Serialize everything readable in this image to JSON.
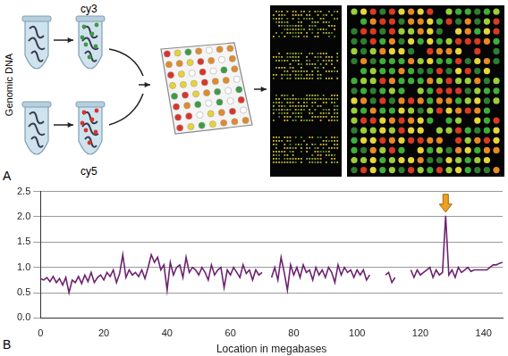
{
  "panel_a": {
    "label": "A",
    "side_label": "Genomic DNA",
    "top_dye": "cy3",
    "bottom_dye": "cy5"
  },
  "chart_data": {
    "type": "line",
    "panel_label": "B",
    "x_label": "Location in megabases",
    "x": [
      0,
      1,
      2,
      3,
      4,
      5,
      6,
      7,
      8,
      9,
      10,
      11,
      12,
      13,
      14,
      15,
      16,
      17,
      18,
      19,
      20,
      21,
      22,
      23,
      24,
      25,
      26,
      27,
      28,
      29,
      30,
      31,
      32,
      33,
      34,
      35,
      36,
      37,
      38,
      39,
      40,
      41,
      42,
      43,
      44,
      45,
      46,
      47,
      48,
      49,
      50,
      51,
      52,
      53,
      54,
      55,
      56,
      57,
      58,
      59,
      60,
      61,
      62,
      63,
      64,
      65,
      66,
      67,
      68,
      69,
      70,
      71,
      72,
      73,
      74,
      75,
      76,
      77,
      78,
      79,
      80,
      81,
      82,
      83,
      84,
      85,
      86,
      87,
      88,
      89,
      90,
      91,
      92,
      93,
      94,
      95,
      96,
      97,
      98,
      99,
      100,
      101,
      102,
      103,
      104,
      105,
      106,
      107,
      108,
      109,
      110,
      111,
      112,
      113,
      114,
      115,
      116,
      117,
      118,
      119,
      120,
      121,
      122,
      123,
      124,
      125,
      126,
      127,
      128,
      129,
      130,
      131,
      132,
      133,
      134,
      135,
      136,
      137,
      138,
      139,
      140,
      141,
      142,
      143,
      144,
      145,
      146
    ],
    "values": [
      0.78,
      0.75,
      0.8,
      0.72,
      0.82,
      0.7,
      0.78,
      0.65,
      0.8,
      0.5,
      0.75,
      0.7,
      0.82,
      0.68,
      0.85,
      0.72,
      0.9,
      0.7,
      0.8,
      0.85,
      0.75,
      0.9,
      0.82,
      0.95,
      0.7,
      0.88,
      1.25,
      0.8,
      0.95,
      0.85,
      0.9,
      0.82,
      0.95,
      0.78,
      1.0,
      1.25,
      1.1,
      1.2,
      0.95,
      1.05,
      0.55,
      1.1,
      0.85,
      1.0,
      1.05,
      0.8,
      1.2,
      0.9,
      1.0,
      0.95,
      0.85,
      1.0,
      0.9,
      0.75,
      1.05,
      0.85,
      0.95,
      1.0,
      0.6,
      0.95,
      0.85,
      1.0,
      0.9,
      0.8,
      1.05,
      0.88,
      0.95,
      0.75,
      0.95,
      0.85,
      0.9,
      null,
      null,
      0.8,
      1.0,
      0.75,
      1.2,
      0.9,
      0.55,
      1.05,
      0.85,
      1.0,
      0.8,
      1.05,
      0.9,
      0.95,
      0.75,
      1.0,
      0.85,
      0.95,
      0.8,
      1.0,
      0.9,
      0.7,
      1.05,
      0.85,
      1.0,
      0.9,
      0.95,
      0.8,
      0.95,
      0.85,
      0.95,
      0.75,
      0.85,
      null,
      null,
      null,
      null,
      0.85,
      0.9,
      0.7,
      0.8,
      null,
      null,
      null,
      null,
      0.95,
      0.8,
      0.95,
      0.85,
      0.9,
      0.95,
      1.0,
      0.8,
      0.95,
      0.85,
      0.9,
      2.02,
      0.85,
      0.95,
      0.8,
      1.0,
      0.9,
      0.95,
      1.0,
      0.92,
      0.95,
      0.95,
      0.95,
      0.95,
      0.95,
      1.0,
      1.05,
      1.05,
      1.08,
      1.1
    ],
    "color": "#6e2270",
    "xlim": [
      0,
      146
    ],
    "xticks": [
      0,
      20,
      40,
      60,
      80,
      100,
      120,
      140
    ],
    "ylim": [
      0,
      2.5
    ],
    "yticks": [
      0,
      0.5,
      1.0,
      1.5,
      2.0,
      2.5
    ],
    "grid": true,
    "marker": "none"
  }
}
